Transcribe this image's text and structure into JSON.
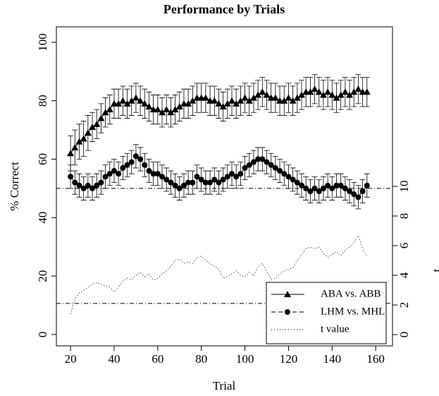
{
  "chart_data": {
    "type": "line",
    "title": "Performance by Trials",
    "xlabel": "Trial",
    "ylabel": "% Correct",
    "y2label": "t",
    "x": [
      20,
      22,
      24,
      26,
      28,
      30,
      32,
      34,
      36,
      38,
      40,
      42,
      44,
      46,
      48,
      50,
      52,
      54,
      56,
      58,
      60,
      62,
      64,
      66,
      68,
      70,
      72,
      74,
      76,
      78,
      80,
      82,
      84,
      86,
      88,
      90,
      92,
      94,
      96,
      98,
      100,
      102,
      104,
      106,
      108,
      110,
      112,
      114,
      116,
      118,
      120,
      122,
      124,
      126,
      128,
      130,
      132,
      134,
      136,
      138,
      140,
      142,
      144,
      146,
      148,
      150,
      152,
      154,
      156
    ],
    "xlim": [
      13.5,
      167.7
    ],
    "xticks": [
      20,
      40,
      60,
      80,
      100,
      120,
      140,
      160
    ],
    "ylim": [
      -3.9,
      105.3
    ],
    "yticks": [
      0,
      20,
      40,
      60,
      80,
      100
    ],
    "y2lim": [
      -0.76,
      20.76
    ],
    "y2ticks": [
      0,
      2,
      4,
      6,
      8,
      10
    ],
    "grid": false,
    "legend": "bottomright",
    "reference_lines": [
      {
        "value": 50,
        "axis": "y"
      },
      {
        "value": 2.1,
        "axis": "y2"
      }
    ],
    "series": [
      {
        "name": "ABA vs. ABB",
        "color": "#000000",
        "marker": "triangle",
        "linestyle": "solid",
        "values": [
          62,
          64,
          66,
          67,
          69,
          71,
          72,
          74,
          76,
          77,
          79,
          79,
          80,
          79,
          80,
          81,
          80,
          79,
          78,
          77,
          77,
          76,
          77,
          76,
          77,
          78,
          79,
          79,
          80,
          81,
          81,
          81,
          80,
          80,
          79,
          78,
          79,
          80,
          79,
          80,
          81,
          80,
          81,
          82,
          83,
          82,
          81,
          81,
          80,
          80,
          81,
          80,
          81,
          82,
          83,
          83,
          84,
          83,
          82,
          83,
          82,
          81,
          82,
          83,
          82,
          83,
          84,
          83,
          83
        ],
        "errors": [
          6,
          6,
          6,
          6,
          6,
          5,
          5,
          5,
          5,
          5,
          5,
          5,
          5,
          5,
          5,
          5,
          5,
          5,
          5,
          5,
          5,
          5,
          5,
          5,
          5,
          5,
          5,
          5,
          5,
          5,
          5,
          5,
          5,
          5,
          5,
          5,
          5,
          5,
          5,
          5,
          5,
          5,
          5,
          5,
          5,
          5,
          5,
          5,
          5,
          5,
          5,
          5,
          5,
          5,
          5,
          5,
          5,
          5,
          5,
          5,
          5,
          5,
          5,
          5,
          5,
          5,
          5,
          5,
          5
        ]
      },
      {
        "name": "LHM vs. MHL",
        "color": "#000000",
        "marker": "circle",
        "linestyle": "dashed",
        "values": [
          54,
          52,
          51,
          50,
          51,
          50,
          51,
          52,
          54,
          55,
          56,
          55,
          57,
          58,
          59,
          61,
          60,
          58,
          56,
          55,
          55,
          54,
          53,
          52,
          51,
          50,
          51,
          52,
          52,
          54,
          53,
          52,
          52,
          53,
          52,
          53,
          54,
          55,
          54,
          55,
          57,
          58,
          59,
          60,
          60,
          59,
          58,
          57,
          56,
          55,
          54,
          53,
          52,
          51,
          50,
          49,
          50,
          49,
          50,
          51,
          50,
          51,
          51,
          50,
          49,
          48,
          47,
          49,
          51
        ],
        "errors": [
          4,
          4,
          4,
          4,
          4,
          4,
          4,
          4,
          4,
          4,
          4,
          4,
          4,
          4,
          4,
          4,
          4,
          4,
          4,
          4,
          4,
          4,
          4,
          4,
          4,
          4,
          4,
          4,
          4,
          4,
          4,
          4,
          4,
          4,
          4,
          4,
          4,
          4,
          4,
          4,
          4,
          4,
          4,
          4,
          4,
          4,
          4,
          4,
          4,
          4,
          4,
          4,
          4,
          4,
          4,
          4,
          4,
          4,
          4,
          4,
          4,
          4,
          4,
          4,
          4,
          4,
          4,
          4,
          4
        ]
      },
      {
        "name": "t value",
        "color": "#000000",
        "marker": "none",
        "linestyle": "dotted",
        "axis": "y2",
        "values": [
          1.4,
          2.4,
          2.8,
          3.0,
          3.2,
          3.4,
          3.5,
          3.4,
          3.3,
          3.2,
          2.9,
          3.2,
          3.6,
          3.8,
          3.7,
          4.0,
          4.2,
          3.9,
          4.1,
          3.7,
          3.8,
          4.1,
          4.3,
          4.6,
          5.0,
          5.1,
          4.8,
          4.9,
          4.8,
          5.2,
          5.3,
          5.0,
          4.8,
          4.6,
          4.4,
          3.8,
          3.9,
          4.1,
          4.3,
          4.0,
          3.9,
          4.2,
          4.0,
          4.6,
          4.8,
          4.3,
          3.7,
          3.8,
          4.1,
          4.3,
          4.4,
          4.5,
          5.0,
          5.4,
          5.8,
          5.9,
          5.8,
          5.9,
          5.5,
          5.2,
          5.4,
          5.6,
          5.3,
          5.7,
          5.9,
          6.2,
          6.7,
          5.8,
          5.3
        ]
      }
    ]
  }
}
